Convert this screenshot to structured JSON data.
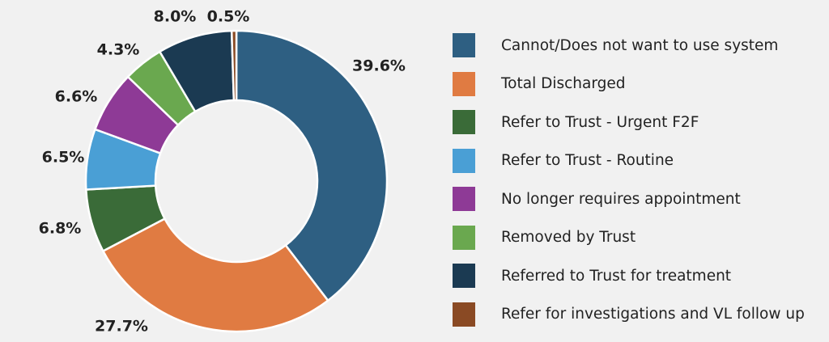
{
  "chart_data": {
    "type": "pie",
    "title": "",
    "categories": [
      "Cannot/Does not want to use system",
      "Total Discharged",
      "Refer to Trust - Urgent F2F",
      "Refer to Trust - Routine",
      "No longer requires appointment",
      "Removed by Trust",
      "Referred to Trust for treatment",
      "Refer for investigations and VL follow up"
    ],
    "values": [
      39.6,
      27.7,
      6.8,
      6.5,
      6.6,
      4.3,
      8.0,
      0.5
    ],
    "value_labels": [
      "39.6%",
      "27.7%",
      "6.8%",
      "6.5%",
      "6.6%",
      "4.3%",
      "8.0%",
      "0.5%"
    ],
    "colors": [
      "#2e5f82",
      "#e07b42",
      "#3a6b38",
      "#4a9fd5",
      "#8e3a96",
      "#6aa84f",
      "#1b3a52",
      "#8a4a24"
    ],
    "donut": true,
    "legend_position": "right"
  }
}
